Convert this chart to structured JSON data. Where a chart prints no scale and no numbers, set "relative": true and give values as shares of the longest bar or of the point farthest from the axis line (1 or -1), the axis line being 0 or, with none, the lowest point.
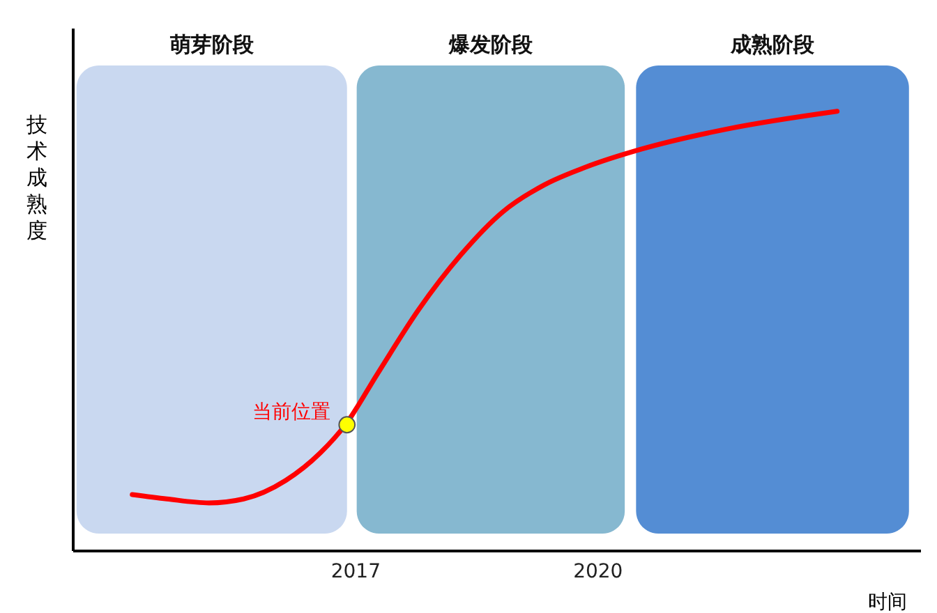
{
  "chart_data": {
    "type": "line",
    "relative": true,
    "ylabel": "技术成熟度",
    "xlabel": "时间",
    "xlim": [
      2013.5,
      2024
    ],
    "xticks": [
      2017,
      2020
    ],
    "grid": false,
    "bands": [
      {
        "axis": "x",
        "from": 2013.55,
        "to": 2016.9,
        "label": "萌芽阶段",
        "color": "#c9d8f0"
      },
      {
        "axis": "x",
        "from": 2017.02,
        "to": 2020.34,
        "label": "爆发阶段",
        "color": "#86b8d0"
      },
      {
        "axis": "x",
        "from": 2020.48,
        "to": 2023.86,
        "label": "成熟阶段",
        "color": "#548dd4"
      }
    ],
    "series": [
      {
        "color": "#ff0000",
        "x": [
          2014.24,
          2014.67,
          2015.19,
          2015.62,
          2016.14,
          2016.57,
          2016.88,
          2017.28,
          2017.79,
          2018.31,
          2018.83,
          2019.34,
          2019.86,
          2020.55,
          2021.59,
          2022.97
        ],
        "values": [
          0.127,
          0.117,
          0.108,
          0.117,
          0.159,
          0.222,
          0.286,
          0.403,
          0.549,
          0.673,
          0.771,
          0.832,
          0.873,
          0.914,
          0.959,
          1.0
        ]
      },
      {
        "type": "scatter",
        "color": "#ffff00",
        "marker": "circle",
        "x": [
          2016.9
        ],
        "values": [
          0.286
        ]
      }
    ],
    "annotations": [
      {
        "text": "当前位置",
        "x": 2016.9,
        "y": 0.286
      }
    ]
  }
}
